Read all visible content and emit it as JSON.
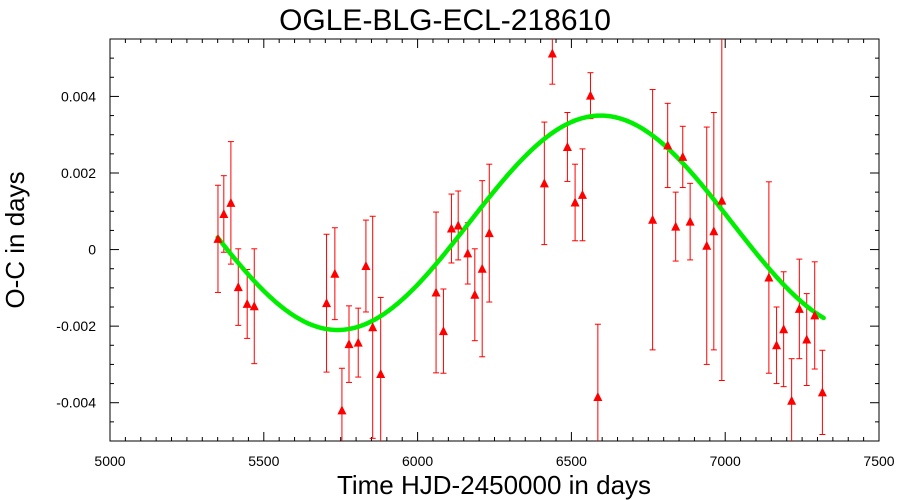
{
  "chart_data": {
    "type": "scatter",
    "title": "OGLE-BLG-ECL-218610",
    "xlabel": "Time HJD-2450000 in days",
    "ylabel": "O-C in days",
    "xlim": [
      5000,
      7500
    ],
    "ylim": [
      -0.005,
      0.0055
    ],
    "x_ticks": [
      5000,
      5500,
      6000,
      6500,
      7000,
      7500
    ],
    "x_tick_labels": [
      "5000",
      "5500",
      "6000",
      "6500",
      "7000",
      "7500"
    ],
    "y_ticks": [
      -0.004,
      -0.002,
      0,
      0.002,
      0.004
    ],
    "y_tick_labels": [
      "-0.004",
      "-0.002",
      "0",
      "0.002",
      "0.004"
    ],
    "grid": false,
    "series": [
      {
        "kind": "points_with_errorbars",
        "color": "#ff0000",
        "marker": "triangle",
        "points": [
          {
            "x": 5351,
            "y": 0.00028,
            "err": 0.0014
          },
          {
            "x": 5370,
            "y": 0.00093,
            "err": 0.001
          },
          {
            "x": 5393,
            "y": 0.00122,
            "err": 0.0016
          },
          {
            "x": 5417,
            "y": -0.00098,
            "err": 0.001
          },
          {
            "x": 5446,
            "y": -0.00142,
            "err": 0.0009
          },
          {
            "x": 5469,
            "y": -0.00148,
            "err": 0.0015
          },
          {
            "x": 5704,
            "y": -0.0014,
            "err": 0.0018
          },
          {
            "x": 5731,
            "y": -0.00063,
            "err": 0.0012
          },
          {
            "x": 5754,
            "y": -0.0042,
            "err": 0.0011
          },
          {
            "x": 5777,
            "y": -0.00247,
            "err": 0.001
          },
          {
            "x": 5807,
            "y": -0.00243,
            "err": 0.0009
          },
          {
            "x": 5832,
            "y": -0.00043,
            "err": 0.0012
          },
          {
            "x": 5854,
            "y": -0.00203,
            "err": 0.0029
          },
          {
            "x": 5880,
            "y": -0.00325,
            "err": 0.002
          },
          {
            "x": 6060,
            "y": -0.00112,
            "err": 0.0021
          },
          {
            "x": 6084,
            "y": -0.00213,
            "err": 0.0011
          },
          {
            "x": 6110,
            "y": 0.00055,
            "err": 0.0009
          },
          {
            "x": 6132,
            "y": 0.00063,
            "err": 0.0009
          },
          {
            "x": 6163,
            "y": -0.0001,
            "err": 0.0008
          },
          {
            "x": 6186,
            "y": -0.00118,
            "err": 0.0012
          },
          {
            "x": 6210,
            "y": -0.0005,
            "err": 0.0023
          },
          {
            "x": 6233,
            "y": 0.00043,
            "err": 0.0018
          },
          {
            "x": 6412,
            "y": 0.00173,
            "err": 0.0016
          },
          {
            "x": 6438,
            "y": 0.00512,
            "err": 0.0008
          },
          {
            "x": 6487,
            "y": 0.00268,
            "err": 0.0009
          },
          {
            "x": 6512,
            "y": 0.00123,
            "err": 0.001
          },
          {
            "x": 6536,
            "y": 0.00143,
            "err": 0.0012
          },
          {
            "x": 6562,
            "y": 0.00402,
            "err": 0.0006
          },
          {
            "x": 6586,
            "y": -0.00385,
            "err": 0.0019
          },
          {
            "x": 6764,
            "y": 0.00078,
            "err": 0.0034
          },
          {
            "x": 6813,
            "y": 0.00272,
            "err": 0.0011
          },
          {
            "x": 6839,
            "y": 0.0006,
            "err": 0.0009
          },
          {
            "x": 6862,
            "y": 0.00242,
            "err": 0.0008
          },
          {
            "x": 6886,
            "y": 0.00073,
            "err": 0.001
          },
          {
            "x": 6940,
            "y": 0.0001,
            "err": 0.0031
          },
          {
            "x": 6963,
            "y": 0.00048,
            "err": 0.0031
          },
          {
            "x": 6989,
            "y": 0.00128,
            "err": 0.0047
          },
          {
            "x": 7142,
            "y": -0.00073,
            "err": 0.0025
          },
          {
            "x": 7167,
            "y": -0.0025,
            "err": 0.001
          },
          {
            "x": 7190,
            "y": -0.00208,
            "err": 0.0015
          },
          {
            "x": 7216,
            "y": -0.00395,
            "err": 0.0011
          },
          {
            "x": 7241,
            "y": -0.00155,
            "err": 0.0013
          },
          {
            "x": 7265,
            "y": -0.00235,
            "err": 0.0012
          },
          {
            "x": 7291,
            "y": -0.00172,
            "err": 0.0014
          },
          {
            "x": 7316,
            "y": -0.00373,
            "err": 0.0011
          }
        ]
      },
      {
        "kind": "fit_curve",
        "color": "#00ee00",
        "x_start": 5350,
        "x_end": 7320,
        "offset": 0.0007,
        "amplitude": 0.0028,
        "period": 1710,
        "x_peak": 6595
      }
    ]
  }
}
